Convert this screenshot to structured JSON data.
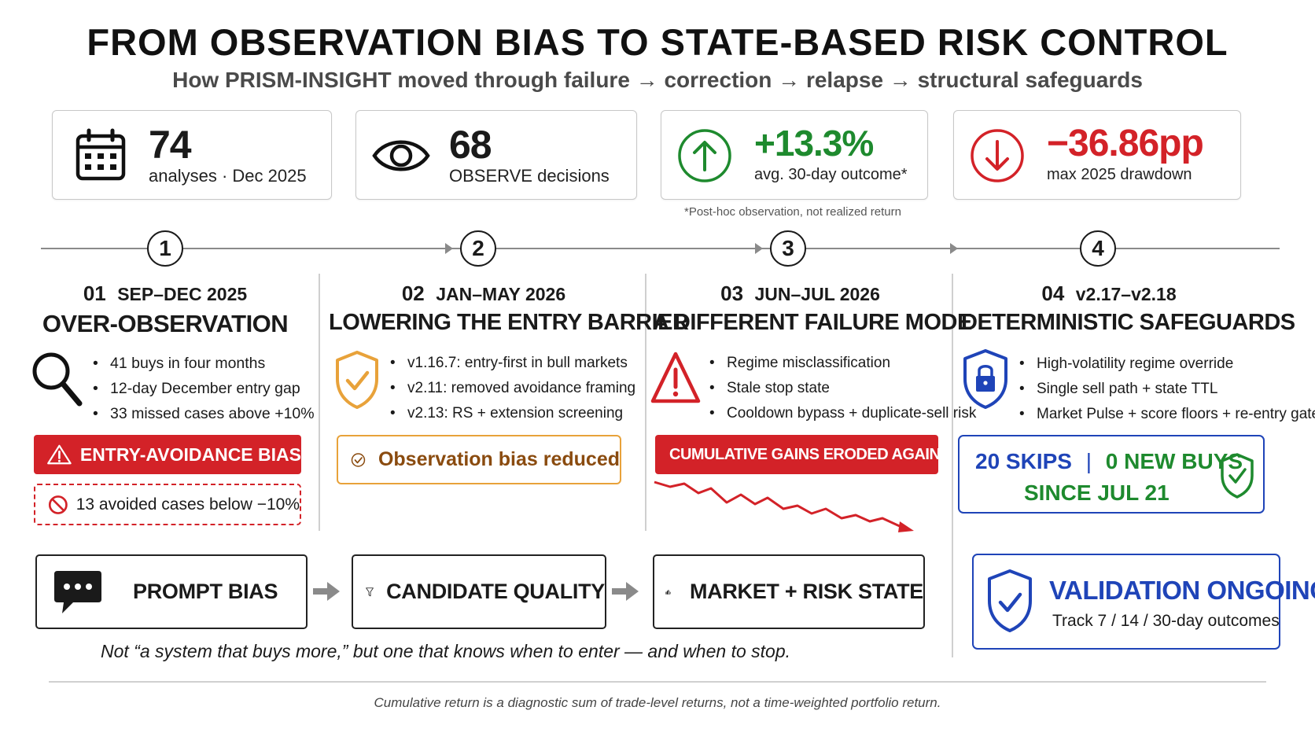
{
  "header": {
    "title": "FROM OBSERVATION BIAS TO STATE-BASED RISK CONTROL",
    "subtitle": "How PRISM-INSIGHT moved through failure → correction → relapse → structural safeguards"
  },
  "stats": [
    {
      "value": "74",
      "label": "analyses · Dec 2025",
      "icon": "calendar-icon",
      "color": "#111111"
    },
    {
      "value": "68",
      "label": "OBSERVE decisions",
      "icon": "eye-icon",
      "color": "#111111"
    },
    {
      "value": "+13.3%",
      "label": "avg. 30-day outcome*",
      "icon": "arrow-up-circle-icon",
      "color": "#1e8a2e"
    },
    {
      "value": "−36.86pp",
      "label": "max 2025 drawdown",
      "icon": "arrow-down-circle-icon",
      "color": "#d32228"
    }
  ],
  "stats_footnote": "*Post-hoc observation, not realized return",
  "steps": [
    "1",
    "2",
    "3",
    "4"
  ],
  "phases": [
    {
      "num": "01",
      "period": "SEP–DEC 2025",
      "title": "OVER-OBSERVATION",
      "icon": "magnifier-icon",
      "bullets": [
        "41 buys in four months",
        "12-day December entry gap",
        "33 missed cases above +10%"
      ],
      "tag": "ENTRY-AVOIDANCE BIAS",
      "note": "13 avoided cases below −10%"
    },
    {
      "num": "02",
      "period": "JAN–MAY 2026",
      "title": "LOWERING THE ENTRY BARRIER",
      "icon": "shield-check-icon",
      "bullets": [
        "v1.16.7: entry-first in bull markets",
        "v2.11: removed avoidance framing",
        "v2.13: RS + extension screening"
      ],
      "tag": "Observation bias reduced"
    },
    {
      "num": "03",
      "period": "JUN–JUL 2026",
      "title": "A DIFFERENT FAILURE MODE",
      "icon": "warning-icon",
      "bullets": [
        "Regime misclassification",
        "Stale stop state",
        "Cooldown bypass + duplicate-sell risk"
      ],
      "tag": "CUMULATIVE GAINS ERODED AGAIN"
    },
    {
      "num": "04",
      "period": "v2.17–v2.18",
      "title": "DETERMINISTIC SAFEGUARDS",
      "icon": "shield-lock-icon",
      "bullets": [
        "High-volatility regime override",
        "Single sell path + state TTL",
        "Market Pulse + score floors + re-entry gate"
      ],
      "box_line1_a": "20 SKIPS",
      "box_sep": "|",
      "box_line1_b": "0 NEW BUYS",
      "box_line2": "SINCE JUL 21"
    }
  ],
  "flow": [
    {
      "label": "PROMPT BIAS",
      "icon": "chat-bubble-icon"
    },
    {
      "label": "CANDIDATE QUALITY",
      "icon": "funnel-icon"
    },
    {
      "label": "MARKET + RISK STATE",
      "icon": "bars-shield-icon"
    }
  ],
  "validation": {
    "title": "VALIDATION ONGOING",
    "subtitle": "Track 7 / 14 / 30-day outcomes"
  },
  "quote": "Not  “a system that buys more,” but one that knows when to enter — and when to stop.",
  "footer_note": "Cumulative return is a diagnostic sum of trade-level returns, not a time-weighted portfolio return.",
  "colors": {
    "red": "#d32228",
    "green": "#1e8a2e",
    "blue": "#1f44b8",
    "orange": "#e8a23a"
  }
}
